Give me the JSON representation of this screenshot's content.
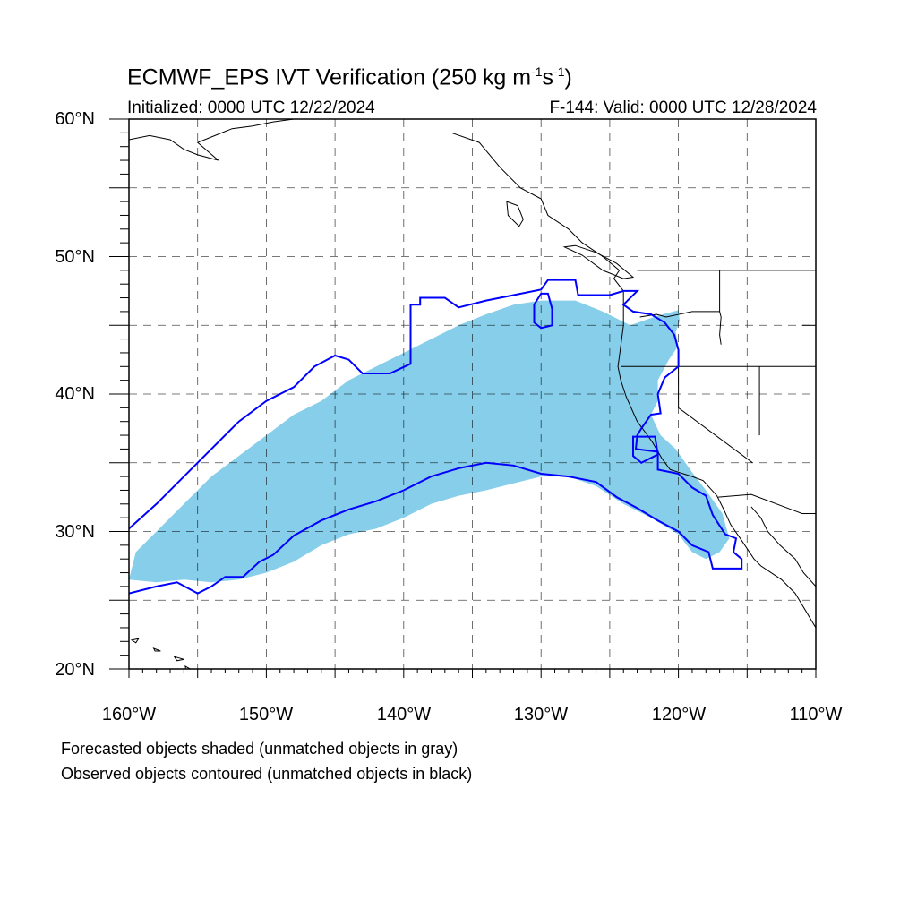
{
  "header": {
    "title_main": "ECMWF_EPS IVT Verification (250 kg m",
    "title_sup1": "-1",
    "title_mid": "s",
    "title_sup2": "-1",
    "title_end": ")",
    "initialized": "Initialized: 0000 UTC 12/22/2024",
    "valid": "F-144: Valid: 0000 UTC 12/28/2024"
  },
  "axes": {
    "lat_labels": [
      "60°N",
      "50°N",
      "40°N",
      "30°N",
      "20°N"
    ],
    "lon_labels": [
      "160°W",
      "150°W",
      "140°W",
      "130°W",
      "120°W",
      "110°W"
    ],
    "lat_range": [
      20,
      60
    ],
    "lon_range": [
      -160,
      -110
    ]
  },
  "legend": {
    "line1": "Forecasted objects shaded (unmatched objects in gray)",
    "line2": "Observed objects contoured (unmatched objects in black)"
  },
  "colors": {
    "forecast_fill": "#87ceeb",
    "observed_contour": "#0000ff",
    "coastline": "#000000",
    "grid": "#000000"
  },
  "map_data": {
    "forecast_object": [
      [
        -160,
        26.5
      ],
      [
        -159.5,
        28.5
      ],
      [
        -158,
        30
      ],
      [
        -156,
        32
      ],
      [
        -154,
        34
      ],
      [
        -152,
        35.5
      ],
      [
        -150,
        37
      ],
      [
        -148,
        38.5
      ],
      [
        -146,
        39.5
      ],
      [
        -144,
        41
      ],
      [
        -142,
        42
      ],
      [
        -140,
        43
      ],
      [
        -138,
        44
      ],
      [
        -136,
        45
      ],
      [
        -134,
        45.8
      ],
      [
        -132,
        46.5
      ],
      [
        -130,
        46.8
      ],
      [
        -127.5,
        46.8
      ],
      [
        -125.5,
        46
      ],
      [
        -123.5,
        45
      ],
      [
        -121.5,
        45.7
      ],
      [
        -120,
        46.1
      ],
      [
        -119.9,
        45.3
      ],
      [
        -120.2,
        44.5
      ],
      [
        -120,
        43.5
      ],
      [
        -120.7,
        42.5
      ],
      [
        -121.5,
        41
      ],
      [
        -121.5,
        39.5
      ],
      [
        -122,
        38.5
      ],
      [
        -121.3,
        37
      ],
      [
        -120.2,
        36
      ],
      [
        -119,
        34.3
      ],
      [
        -118,
        33
      ],
      [
        -116.8,
        31.3
      ],
      [
        -116.3,
        29.5
      ],
      [
        -117,
        28.5
      ],
      [
        -118,
        28
      ],
      [
        -119,
        28.5
      ],
      [
        -120,
        29.8
      ],
      [
        -122,
        31
      ],
      [
        -124,
        32
      ],
      [
        -126,
        33.3
      ],
      [
        -128,
        34
      ],
      [
        -130,
        34
      ],
      [
        -132,
        33.5
      ],
      [
        -134,
        33
      ],
      [
        -136,
        32.6
      ],
      [
        -138,
        32
      ],
      [
        -140,
        31
      ],
      [
        -142,
        30.2
      ],
      [
        -144,
        29.8
      ],
      [
        -146,
        29
      ],
      [
        -148,
        27.8
      ],
      [
        -150,
        27
      ],
      [
        -152,
        26.5
      ],
      [
        -154,
        26.3
      ],
      [
        -156,
        26.5
      ],
      [
        -158,
        26.3
      ],
      [
        -160,
        26.5
      ]
    ],
    "observed_contour": [
      [
        -160,
        30.2
      ],
      [
        -158,
        32
      ],
      [
        -156,
        34
      ],
      [
        -154,
        36
      ],
      [
        -152,
        38
      ],
      [
        -150,
        39.5
      ],
      [
        -148,
        40.5
      ],
      [
        -146.5,
        42
      ],
      [
        -145,
        42.8
      ],
      [
        -144,
        42.5
      ],
      [
        -143,
        41.5
      ],
      [
        -141,
        41.5
      ],
      [
        -139.5,
        42.2
      ],
      [
        -139.5,
        46.5
      ],
      [
        -138.8,
        46.5
      ],
      [
        -138.8,
        47
      ],
      [
        -137,
        47
      ],
      [
        -136,
        46.3
      ],
      [
        -134,
        46.8
      ],
      [
        -132,
        47.2
      ],
      [
        -130,
        47.6
      ],
      [
        -129.5,
        48.3
      ],
      [
        -127.5,
        48.3
      ],
      [
        -127.3,
        47.2
      ],
      [
        -125,
        47.2
      ],
      [
        -124,
        47.5
      ],
      [
        -123,
        47.5
      ],
      [
        -124,
        46.5
      ],
      [
        -123.3,
        46
      ],
      [
        -122,
        45.8
      ],
      [
        -121,
        45.2
      ],
      [
        -120.3,
        44.3
      ],
      [
        -120,
        43.2
      ],
      [
        -120,
        42
      ],
      [
        -121,
        41.2
      ],
      [
        -121.5,
        40
      ],
      [
        -121.3,
        38.6
      ],
      [
        -122,
        38.5
      ],
      [
        -122.7,
        37.5
      ],
      [
        -123,
        37
      ],
      [
        -123.1,
        36
      ],
      [
        -121.5,
        35.8
      ],
      [
        -121.5,
        34.5
      ],
      [
        -120,
        34.2
      ],
      [
        -119,
        33.2
      ],
      [
        -118,
        32.6
      ],
      [
        -117.5,
        31.2
      ],
      [
        -116.6,
        29.8
      ],
      [
        -115.8,
        29.5
      ],
      [
        -116,
        28.5
      ],
      [
        -115.4,
        28
      ],
      [
        -115.4,
        27.3
      ],
      [
        -117.5,
        27.3
      ],
      [
        -117.8,
        28.5
      ],
      [
        -119,
        29
      ],
      [
        -120,
        30
      ],
      [
        -121.5,
        30.8
      ],
      [
        -123,
        31.7
      ],
      [
        -124.5,
        32.5
      ],
      [
        -126,
        33.6
      ],
      [
        -128,
        34
      ],
      [
        -130,
        34.2
      ],
      [
        -132,
        34.8
      ],
      [
        -134,
        35
      ],
      [
        -136,
        34.6
      ],
      [
        -138,
        34
      ],
      [
        -140,
        33
      ],
      [
        -142,
        32.2
      ],
      [
        -144,
        31.6
      ],
      [
        -146,
        30.8
      ],
      [
        -148,
        29.7
      ],
      [
        -149.5,
        28.3
      ],
      [
        -150.5,
        27.8
      ],
      [
        -151.7,
        26.7
      ],
      [
        -153,
        26.7
      ],
      [
        -154,
        26
      ],
      [
        -155,
        25.5
      ],
      [
        -156.5,
        26.3
      ],
      [
        -158,
        26
      ],
      [
        -160,
        25.5
      ]
    ],
    "observed_contour_inner": [
      [
        -130,
        47.3
      ],
      [
        -129.5,
        47.3
      ],
      [
        -129.2,
        46.2
      ],
      [
        -129.2,
        45
      ],
      [
        -130,
        44.8
      ],
      [
        -130.5,
        45.2
      ],
      [
        -130.5,
        46.5
      ],
      [
        -130,
        47.3
      ]
    ],
    "observed_contour_ca": [
      [
        -123.3,
        36.9
      ],
      [
        -121.7,
        36.9
      ],
      [
        -121.5,
        35.6
      ],
      [
        -122.7,
        35
      ],
      [
        -123.3,
        35.5
      ],
      [
        -123.3,
        36.9
      ]
    ],
    "coastline": [
      [
        -136.5,
        59
      ],
      [
        -134.5,
        58.3
      ],
      [
        -133,
        56.5
      ],
      [
        -131.5,
        55
      ],
      [
        -130,
        54.2
      ],
      [
        -129.5,
        53
      ],
      [
        -128,
        52
      ],
      [
        -127,
        51
      ],
      [
        -125.5,
        50
      ],
      [
        -124.3,
        49
      ],
      [
        -124.7,
        48.4
      ],
      [
        -124,
        47.5
      ],
      [
        -124,
        46.3
      ],
      [
        -124,
        45
      ],
      [
        -124.2,
        43.5
      ],
      [
        -124.4,
        42
      ],
      [
        -124.2,
        41
      ],
      [
        -123.8,
        39.8
      ],
      [
        -123,
        38
      ],
      [
        -122.4,
        37.2
      ],
      [
        -121.9,
        36.5
      ],
      [
        -121.2,
        35.3
      ],
      [
        -120.6,
        34.5
      ],
      [
        -119,
        34
      ],
      [
        -118.2,
        33.7
      ],
      [
        -117.2,
        32.6
      ],
      [
        -116.7,
        31.6
      ],
      [
        -116.2,
        30.5
      ],
      [
        -115.5,
        29.5
      ],
      [
        -114.5,
        28
      ],
      [
        -114,
        27.5
      ],
      [
        -112.5,
        26.5
      ],
      [
        -111.5,
        25.5
      ],
      [
        -110,
        23
      ]
    ],
    "gulf_coast": [
      [
        -114.7,
        31.8
      ],
      [
        -114,
        31
      ],
      [
        -113.5,
        30
      ],
      [
        -112.6,
        29
      ],
      [
        -111.5,
        28
      ],
      [
        -110.9,
        27
      ],
      [
        -110,
        26
      ]
    ],
    "borders": [
      [
        [
          -123,
          49
        ],
        [
          -110,
          49
        ]
      ],
      [
        [
          -124.2,
          42
        ],
        [
          -110,
          42
        ]
      ],
      [
        [
          -120,
          42
        ],
        [
          -120,
          39
        ],
        [
          -114.6,
          35
        ]
      ],
      [
        [
          -117,
          49
        ],
        [
          -117,
          46
        ],
        [
          -116.9,
          45.6
        ],
        [
          -117,
          44.3
        ],
        [
          -116.9,
          43.6
        ]
      ],
      [
        [
          -117,
          46
        ],
        [
          -119,
          46
        ],
        [
          -120.9,
          45.6
        ],
        [
          -121.6,
          45.8
        ],
        [
          -122.8,
          45.6
        ]
      ],
      [
        [
          -111,
          45
        ],
        [
          -110,
          45
        ]
      ],
      [
        [
          -114.1,
          42
        ],
        [
          -114.1,
          37
        ]
      ],
      [
        [
          -117.1,
          32.5
        ],
        [
          -114.7,
          32.7
        ],
        [
          -111,
          31.3
        ],
        [
          -110,
          31.3
        ]
      ]
    ],
    "alaska_coast": [
      [
        -160,
        58.5
      ],
      [
        -158.5,
        58.8
      ],
      [
        -157,
        58.5
      ],
      [
        -156,
        57.8
      ],
      [
        -155,
        57.4
      ],
      [
        -153.5,
        57
      ],
      [
        -155,
        58.3
      ],
      [
        -154,
        58.7
      ],
      [
        -152.5,
        59.3
      ],
      [
        -151,
        59.5
      ],
      [
        -149.5,
        59.8
      ],
      [
        -148,
        60
      ]
    ],
    "hawaii": [
      [
        -159.8,
        22.1
      ],
      [
        -159.3,
        22.2
      ],
      [
        -159.5,
        21.9
      ],
      [
        -158.2,
        21.5
      ],
      [
        -157.7,
        21.3
      ],
      [
        -158.1,
        21.3
      ],
      [
        -156.7,
        20.9
      ],
      [
        -156,
        20.7
      ],
      [
        -156.5,
        20.6
      ],
      [
        -155.9,
        20.2
      ],
      [
        -155,
        19.7
      ],
      [
        -155.7,
        19.1
      ]
    ],
    "islands": [
      [
        -132.5,
        54
      ],
      [
        -131.7,
        53.7
      ],
      [
        -131.3,
        52.7
      ],
      [
        -131.6,
        52.2
      ],
      [
        -132.4,
        53
      ]
    ],
    "vancouver_island": [
      [
        -128.3,
        50.7
      ],
      [
        -127,
        50.1
      ],
      [
        -125.5,
        49
      ],
      [
        -124,
        48.4
      ],
      [
        -123.3,
        48.5
      ],
      [
        -124.5,
        49.5
      ],
      [
        -126,
        50.3
      ],
      [
        -127.5,
        50.8
      ]
    ]
  }
}
